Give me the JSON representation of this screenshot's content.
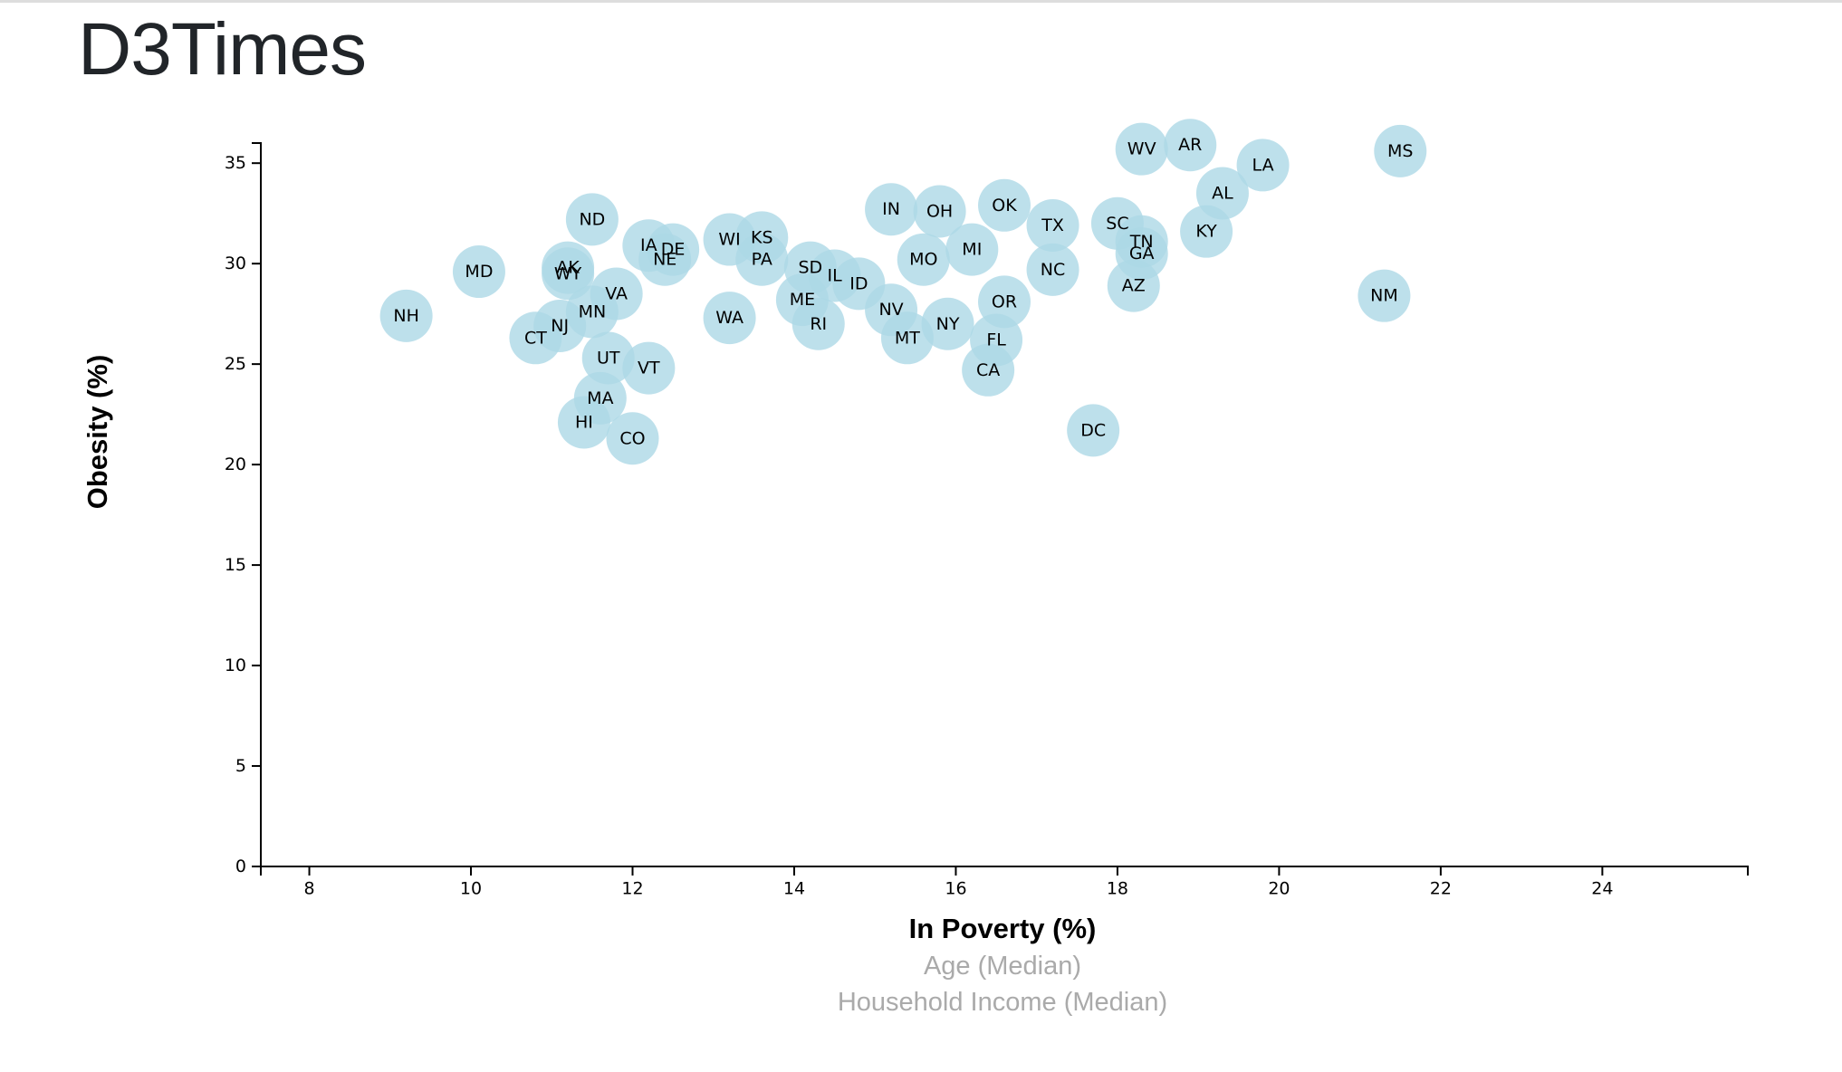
{
  "header": {
    "title": "D3Times"
  },
  "chart_data": {
    "type": "scatter",
    "title": "",
    "xlabel": "In Poverty (%)",
    "ylabel": "Obesity (%)",
    "x_axis_options": [
      "In Poverty (%)",
      "Age (Median)",
      "Household Income (Median)"
    ],
    "active_x_axis": "In Poverty (%)",
    "xlim": [
      7.4,
      25.8
    ],
    "ylim": [
      0,
      36
    ],
    "x_ticks": [
      8,
      10,
      12,
      14,
      16,
      18,
      20,
      22,
      24
    ],
    "y_ticks": [
      0,
      5,
      10,
      15,
      20,
      25,
      30,
      35
    ],
    "marker_color": "#add8e6",
    "points": [
      {
        "label": "NH",
        "x": 9.2,
        "y": 27.4
      },
      {
        "label": "MD",
        "x": 10.1,
        "y": 29.6
      },
      {
        "label": "AK",
        "x": 11.2,
        "y": 29.8
      },
      {
        "label": "WY",
        "x": 11.2,
        "y": 29.5
      },
      {
        "label": "CT",
        "x": 10.8,
        "y": 26.3
      },
      {
        "label": "NJ",
        "x": 11.1,
        "y": 26.9
      },
      {
        "label": "ND",
        "x": 11.5,
        "y": 32.2
      },
      {
        "label": "MN",
        "x": 11.5,
        "y": 27.6
      },
      {
        "label": "VA",
        "x": 11.8,
        "y": 28.5
      },
      {
        "label": "UT",
        "x": 11.7,
        "y": 25.3
      },
      {
        "label": "MA",
        "x": 11.6,
        "y": 23.3
      },
      {
        "label": "HI",
        "x": 11.4,
        "y": 22.1
      },
      {
        "label": "CO",
        "x": 12.0,
        "y": 21.3
      },
      {
        "label": "IA",
        "x": 12.2,
        "y": 30.9
      },
      {
        "label": "DE",
        "x": 12.5,
        "y": 30.7
      },
      {
        "label": "NE",
        "x": 12.4,
        "y": 30.2
      },
      {
        "label": "VT",
        "x": 12.2,
        "y": 24.8
      },
      {
        "label": "WI",
        "x": 13.2,
        "y": 31.2
      },
      {
        "label": "KS",
        "x": 13.6,
        "y": 31.3
      },
      {
        "label": "PA",
        "x": 13.6,
        "y": 30.2
      },
      {
        "label": "WA",
        "x": 13.2,
        "y": 27.3
      },
      {
        "label": "SD",
        "x": 14.2,
        "y": 29.8
      },
      {
        "label": "IL",
        "x": 14.5,
        "y": 29.4
      },
      {
        "label": "ID",
        "x": 14.8,
        "y": 29.0
      },
      {
        "label": "ME",
        "x": 14.1,
        "y": 28.2
      },
      {
        "label": "RI",
        "x": 14.3,
        "y": 27.0
      },
      {
        "label": "IN",
        "x": 15.2,
        "y": 32.7
      },
      {
        "label": "OH",
        "x": 15.8,
        "y": 32.6
      },
      {
        "label": "MO",
        "x": 15.6,
        "y": 30.2
      },
      {
        "label": "MI",
        "x": 16.2,
        "y": 30.7
      },
      {
        "label": "NV",
        "x": 15.2,
        "y": 27.7
      },
      {
        "label": "NY",
        "x": 15.9,
        "y": 27.0
      },
      {
        "label": "MT",
        "x": 15.4,
        "y": 26.3
      },
      {
        "label": "OK",
        "x": 16.6,
        "y": 32.9
      },
      {
        "label": "OR",
        "x": 16.6,
        "y": 28.1
      },
      {
        "label": "FL",
        "x": 16.5,
        "y": 26.2
      },
      {
        "label": "CA",
        "x": 16.4,
        "y": 24.7
      },
      {
        "label": "TX",
        "x": 17.2,
        "y": 31.9
      },
      {
        "label": "NC",
        "x": 17.2,
        "y": 29.7
      },
      {
        "label": "DC",
        "x": 17.7,
        "y": 21.7
      },
      {
        "label": "SC",
        "x": 18.0,
        "y": 32.0
      },
      {
        "label": "TN",
        "x": 18.3,
        "y": 31.1
      },
      {
        "label": "GA",
        "x": 18.3,
        "y": 30.5
      },
      {
        "label": "AZ",
        "x": 18.2,
        "y": 28.9
      },
      {
        "label": "WV",
        "x": 18.3,
        "y": 35.7
      },
      {
        "label": "AR",
        "x": 18.9,
        "y": 35.9
      },
      {
        "label": "AL",
        "x": 19.3,
        "y": 33.5
      },
      {
        "label": "KY",
        "x": 19.1,
        "y": 31.6
      },
      {
        "label": "LA",
        "x": 19.8,
        "y": 34.9
      },
      {
        "label": "MS",
        "x": 21.5,
        "y": 35.6
      },
      {
        "label": "NM",
        "x": 21.3,
        "y": 28.4
      }
    ]
  }
}
